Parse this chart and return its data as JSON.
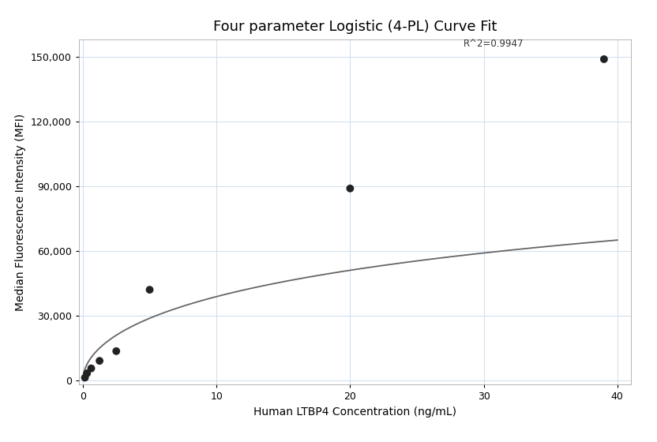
{
  "title": "Four parameter Logistic (4-PL) Curve Fit",
  "xlabel": "Human LTBP4 Concentration (ng/mL)",
  "ylabel": "Median Fluorescence Intensity (MFI)",
  "r_squared": "R^2=0.9947",
  "data_x": [
    0.156,
    0.312,
    0.625,
    1.25,
    2.5,
    5.0,
    20.0,
    39.0
  ],
  "data_y": [
    1200,
    3200,
    5500,
    9000,
    13500,
    42000,
    89000,
    149000
  ],
  "xlim": [
    -0.3,
    41
  ],
  "ylim": [
    -2000,
    158000
  ],
  "yticks": [
    0,
    30000,
    60000,
    90000,
    120000,
    150000
  ],
  "xticks": [
    0,
    10,
    20,
    30,
    40
  ],
  "dot_color": "#222222",
  "dot_size": 50,
  "curve_color": "#666666",
  "curve_linewidth": 1.3,
  "grid_color": "#ccddef",
  "bg_color": "#ffffff",
  "title_fontsize": 13,
  "label_fontsize": 10,
  "tick_fontsize": 9,
  "annotation_fontsize": 8.5,
  "four_pl_A": 200.0,
  "four_pl_B": 0.55,
  "four_pl_C": 80.0,
  "four_pl_D": 160000.0
}
